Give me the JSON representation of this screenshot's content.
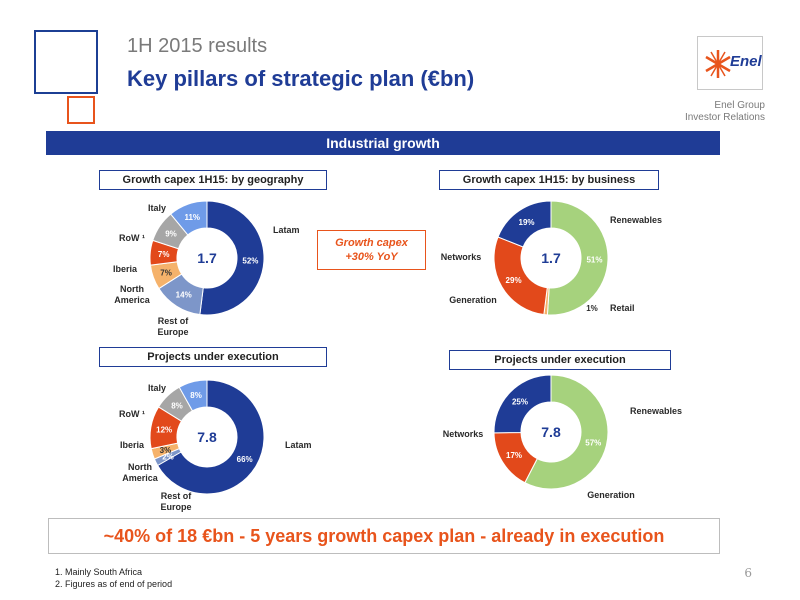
{
  "header": {
    "subtitle": "1H 2015 results",
    "title": "Key pillars of strategic plan (€bn)",
    "logo_text": "Enel",
    "company_line1": "Enel Group",
    "company_line2": "Investor Relations"
  },
  "banner": "Industrial growth",
  "callout": {
    "line1": "Growth capex",
    "line2": "+30% YoY"
  },
  "box_titles": {
    "geo_capex": "Growth capex 1H15: by geography",
    "bus_capex": "Growth capex 1H15: by business",
    "geo_projects": "Projects under execution",
    "bus_projects": "Projects under execution"
  },
  "bottom": "~40% of 18 €bn - 5 years growth capex plan - already in execution",
  "footnotes": [
    "1. Mainly South Africa",
    "2. Figures as of end of period"
  ],
  "page_number": "6",
  "colors": {
    "latam": "#1f3c96",
    "rest_of_europe": "#7d96c9",
    "north_america": "#f5b26b",
    "iberia": "#e2491b",
    "row": "#a6a6a6",
    "italy": "#6f9be8",
    "renewables": "#a6d27d",
    "retail": "#f5b26b",
    "generation": "#e2491b",
    "networks": "#1f3c96"
  },
  "chart_data": [
    {
      "type": "pie",
      "title": "Growth capex 1H15: by geography",
      "total": "1.7",
      "slices": [
        {
          "label": "Latam",
          "value": 52,
          "pct": "52%",
          "color": "#1f3c96"
        },
        {
          "label": "Rest of Europe",
          "value": 14,
          "pct": "14%",
          "color": "#7d96c9"
        },
        {
          "label": "North America",
          "value": 7,
          "pct": "7%",
          "color": "#f5b26b"
        },
        {
          "label": "Iberia",
          "value": 7,
          "pct": "7%",
          "color": "#e2491b"
        },
        {
          "label": "RoW ¹",
          "value": 9,
          "pct": "9%",
          "color": "#a6a6a6"
        },
        {
          "label": "Italy",
          "value": 11,
          "pct": "11%",
          "color": "#6f9be8"
        }
      ]
    },
    {
      "type": "pie",
      "title": "Growth capex 1H15: by business",
      "total": "1.7",
      "slices": [
        {
          "label": "Renewables",
          "value": 51,
          "pct": "51%",
          "color": "#a6d27d"
        },
        {
          "label": "Retail",
          "value": 1,
          "pct": "1%",
          "color": "#f5b26b"
        },
        {
          "label": "Generation",
          "value": 29,
          "pct": "29%",
          "color": "#e2491b"
        },
        {
          "label": "Networks",
          "value": 19,
          "pct": "19%",
          "color": "#1f3c96"
        }
      ]
    },
    {
      "type": "pie",
      "title": "Projects under execution",
      "total": "7.8",
      "slices": [
        {
          "label": "Latam",
          "value": 66,
          "pct": "66%",
          "color": "#1f3c96"
        },
        {
          "label": "Rest of Europe",
          "value": 2,
          "pct": "2%",
          "color": "#7d96c9"
        },
        {
          "label": "North America",
          "value": 3,
          "pct": "3%",
          "color": "#f5b26b"
        },
        {
          "label": "Iberia",
          "value": 12,
          "pct": "12%",
          "color": "#e2491b"
        },
        {
          "label": "RoW ¹",
          "value": 8,
          "pct": "8%",
          "color": "#a6a6a6"
        },
        {
          "label": "Italy",
          "value": 8,
          "pct": "8%",
          "color": "#6f9be8"
        }
      ]
    },
    {
      "type": "pie",
      "title": "Projects under execution",
      "total": "7.8",
      "slices": [
        {
          "label": "Renewables",
          "value": 57,
          "pct": "57%",
          "color": "#a6d27d"
        },
        {
          "label": "Generation",
          "value": 17,
          "pct": "17%",
          "color": "#e2491b"
        },
        {
          "label": "Networks",
          "value": 25,
          "pct": "25%",
          "color": "#1f3c96"
        }
      ]
    }
  ]
}
